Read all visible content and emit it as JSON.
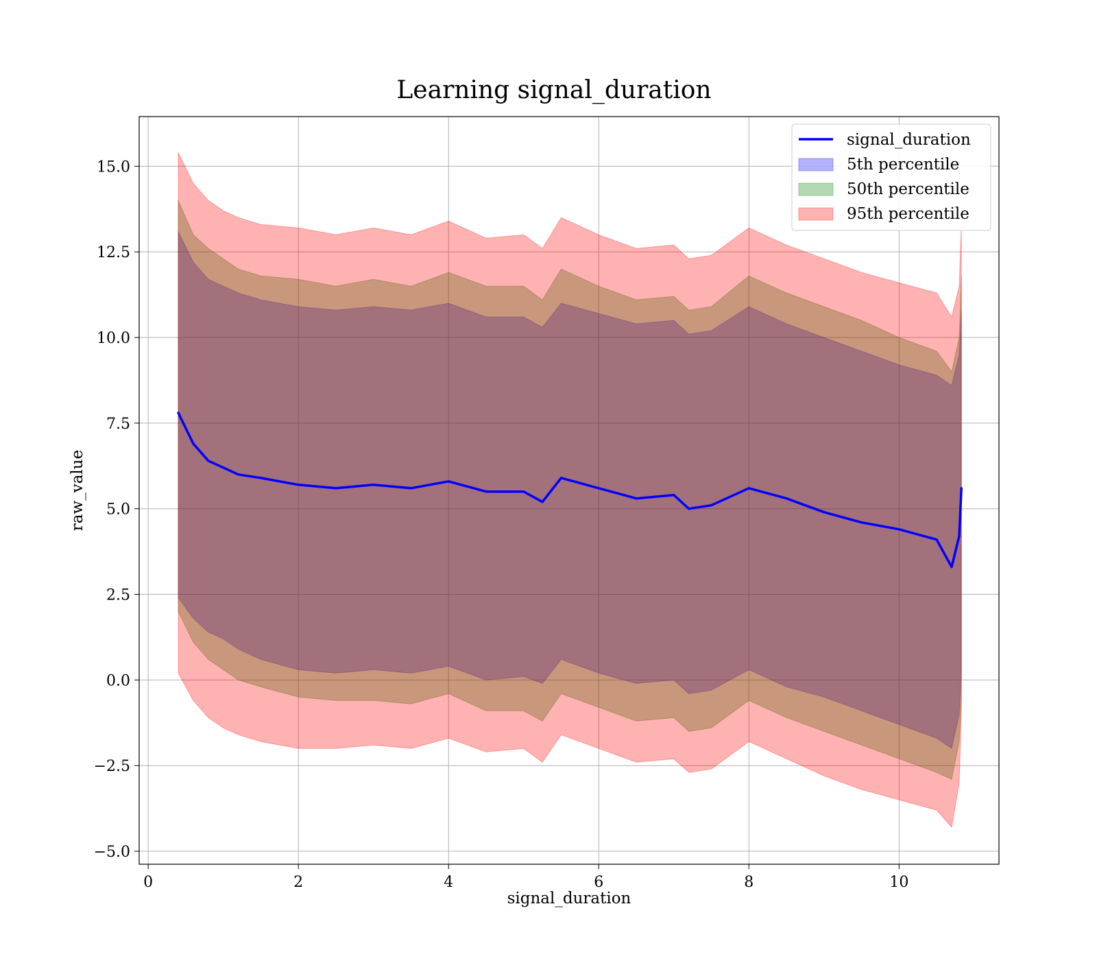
{
  "chart_data": {
    "type": "area",
    "title": "Learning signal_duration",
    "xlabel": "signal_duration",
    "ylabel": "raw_value",
    "xlim": [
      -0.12,
      11.33
    ],
    "ylim": [
      -5.38,
      16.45
    ],
    "xticks": [
      0,
      2,
      4,
      6,
      8,
      10
    ],
    "xtick_labels": [
      "0",
      "2",
      "4",
      "6",
      "8",
      "10"
    ],
    "yticks": [
      -5.0,
      -2.5,
      0.0,
      2.5,
      5.0,
      7.5,
      10.0,
      12.5,
      15.0
    ],
    "ytick_labels": [
      "−5.0",
      "−2.5",
      "0.0",
      "2.5",
      "5.0",
      "7.5",
      "10.0",
      "12.5",
      "15.0"
    ],
    "grid": true,
    "legend_position": "top-right",
    "x": [
      0.4,
      0.6,
      0.8,
      1.0,
      1.2,
      1.5,
      2.0,
      2.5,
      3.0,
      3.5,
      4.0,
      4.5,
      5.0,
      5.25,
      5.5,
      6.0,
      6.5,
      7.0,
      7.2,
      7.5,
      8.0,
      8.5,
      9.0,
      9.5,
      10.0,
      10.5,
      10.7,
      10.8,
      10.83
    ],
    "series": [
      {
        "name": "signal_duration",
        "kind": "line",
        "color": "#0000ff",
        "values": [
          7.8,
          6.9,
          6.4,
          6.2,
          6.0,
          5.9,
          5.7,
          5.6,
          5.7,
          5.6,
          5.8,
          5.5,
          5.5,
          5.2,
          5.9,
          5.6,
          5.3,
          5.4,
          5.0,
          5.1,
          5.6,
          5.3,
          4.9,
          4.6,
          4.4,
          4.1,
          3.3,
          4.2,
          5.6
        ]
      },
      {
        "name": "5th percentile",
        "kind": "band",
        "color": "#0000ff",
        "alpha": 0.3,
        "lower": [
          2.4,
          1.8,
          1.4,
          1.2,
          0.9,
          0.6,
          0.3,
          0.2,
          0.3,
          0.2,
          0.4,
          0.0,
          0.1,
          -0.1,
          0.6,
          0.2,
          -0.1,
          0.0,
          -0.4,
          -0.3,
          0.3,
          -0.2,
          -0.5,
          -0.9,
          -1.3,
          -1.7,
          -2.0,
          -1.0,
          0.3
        ],
        "upper": [
          13.1,
          12.2,
          11.7,
          11.5,
          11.3,
          11.1,
          10.9,
          10.8,
          10.9,
          10.8,
          11.0,
          10.6,
          10.6,
          10.3,
          11.0,
          10.7,
          10.4,
          10.5,
          10.1,
          10.2,
          10.9,
          10.4,
          10.0,
          9.6,
          9.2,
          8.9,
          8.6,
          9.5,
          10.8
        ]
      },
      {
        "name": "50th percentile",
        "kind": "band",
        "color": "#008000",
        "alpha": 0.3,
        "lower": [
          2.0,
          1.1,
          0.6,
          0.3,
          0.0,
          -0.2,
          -0.5,
          -0.6,
          -0.6,
          -0.7,
          -0.4,
          -0.9,
          -0.9,
          -1.2,
          -0.4,
          -0.8,
          -1.2,
          -1.1,
          -1.5,
          -1.4,
          -0.6,
          -1.1,
          -1.5,
          -1.9,
          -2.3,
          -2.7,
          -2.9,
          -1.8,
          -0.6
        ],
        "upper": [
          14.0,
          13.0,
          12.6,
          12.3,
          12.0,
          11.8,
          11.7,
          11.5,
          11.7,
          11.5,
          11.9,
          11.5,
          11.5,
          11.1,
          12.0,
          11.5,
          11.1,
          11.2,
          10.8,
          10.9,
          11.8,
          11.3,
          10.9,
          10.5,
          10.0,
          9.6,
          9.0,
          10.0,
          11.8
        ]
      },
      {
        "name": "95th percentile",
        "kind": "band",
        "color": "#ff0000",
        "alpha": 0.3,
        "lower": [
          0.2,
          -0.6,
          -1.1,
          -1.4,
          -1.6,
          -1.8,
          -2.0,
          -2.0,
          -1.9,
          -2.0,
          -1.7,
          -2.1,
          -2.0,
          -2.4,
          -1.6,
          -2.0,
          -2.4,
          -2.3,
          -2.7,
          -2.6,
          -1.8,
          -2.3,
          -2.8,
          -3.2,
          -3.5,
          -3.8,
          -4.3,
          -3.0,
          -1.0
        ],
        "upper": [
          15.4,
          14.5,
          14.0,
          13.7,
          13.5,
          13.3,
          13.2,
          13.0,
          13.2,
          13.0,
          13.4,
          12.9,
          13.0,
          12.6,
          13.5,
          13.0,
          12.6,
          12.7,
          12.3,
          12.4,
          13.2,
          12.7,
          12.3,
          11.9,
          11.6,
          11.3,
          10.6,
          11.5,
          13.3
        ]
      }
    ]
  }
}
